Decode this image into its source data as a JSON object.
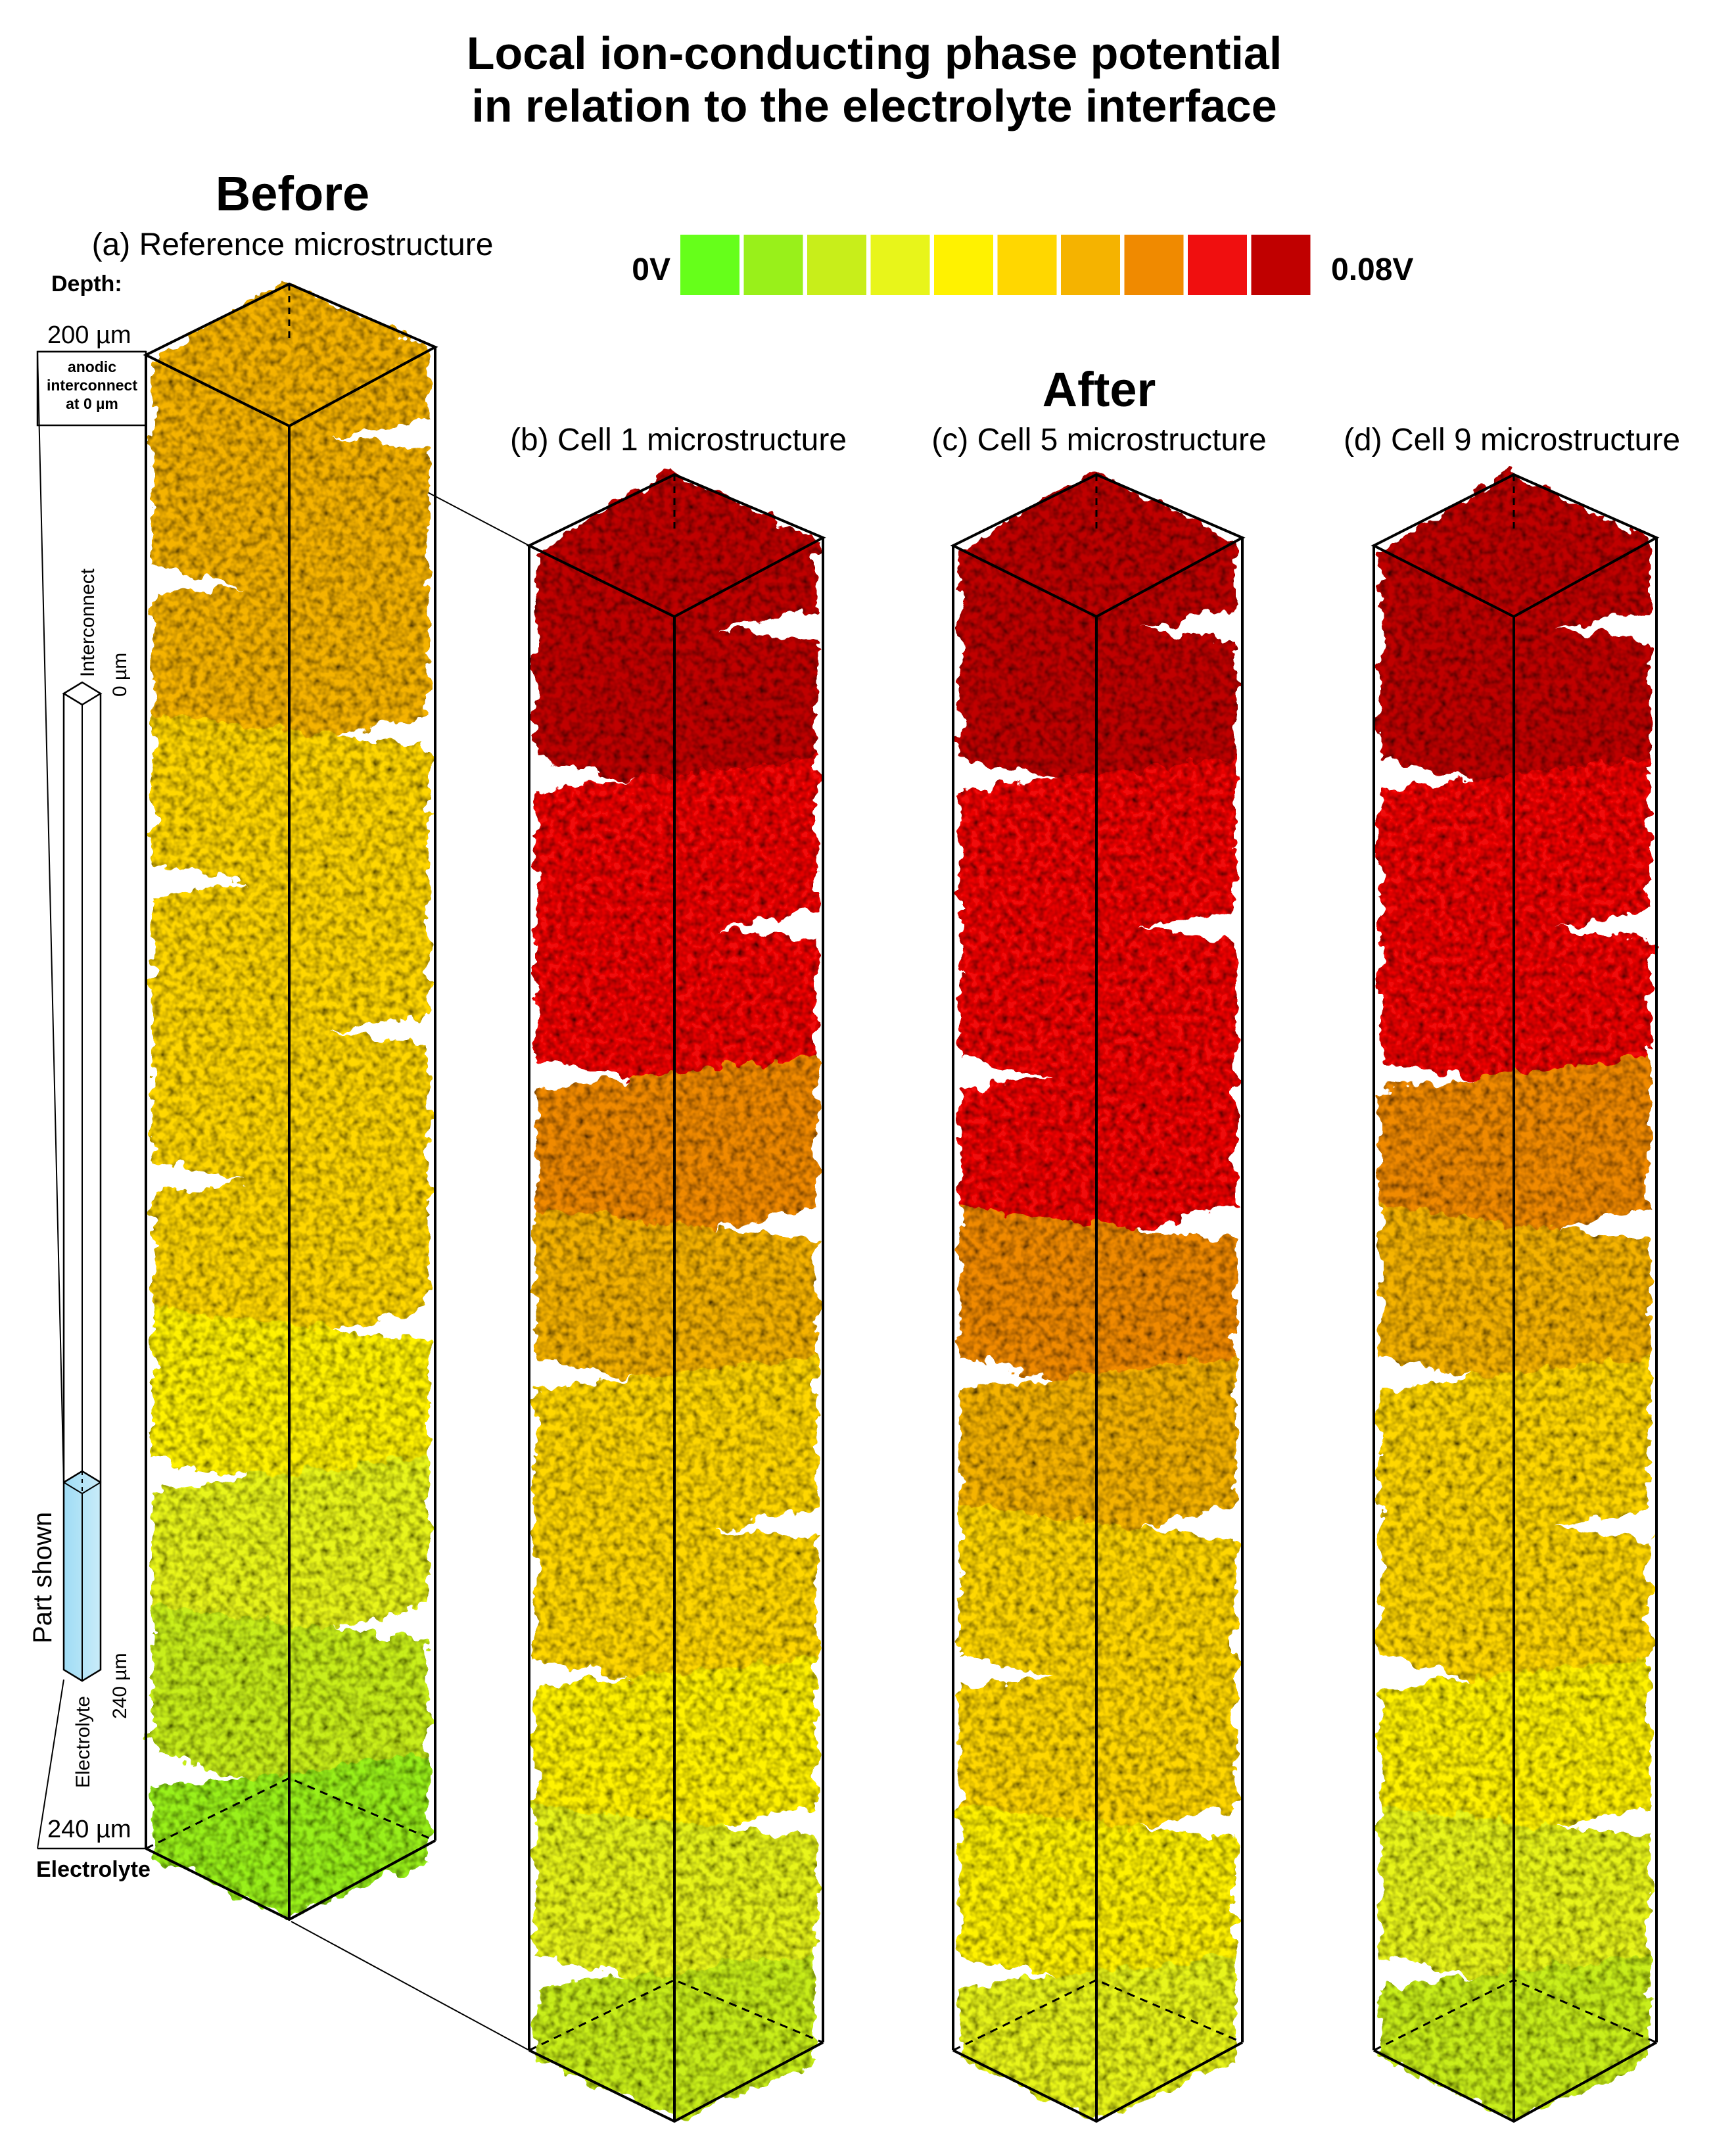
{
  "title": {
    "line1": "Local ion-conducting phase potential",
    "line2": "in relation to the electrolyte interface"
  },
  "before": {
    "heading": "Before",
    "panel_a_label": "(a) Reference microstructure"
  },
  "after": {
    "heading": "After",
    "panel_b_label": "(b) Cell 1 microstructure",
    "panel_c_label": "(c) Cell 5 microstructure",
    "panel_d_label": "(d) Cell 9 microstructure"
  },
  "colorbar": {
    "min_label": "0V",
    "max_label": "0.08V",
    "min_value": 0,
    "max_value": 0.08,
    "unit": "V",
    "colors": [
      "#66ff1a",
      "#99f01a",
      "#c8ee1a",
      "#e8f51a",
      "#fff200",
      "#ffd700",
      "#f5b300",
      "#f08a00",
      "#f00f0f",
      "#c00000"
    ]
  },
  "depth": {
    "label": "Depth:",
    "top": "200 µm",
    "bottom": "240 µm",
    "anodic_line1": "anodic",
    "anodic_line2": "interconnect",
    "anodic_line3": "at 0 µm",
    "electrolyte": "Electrolyte"
  },
  "inset": {
    "interconnect": "Interconnect",
    "zero": "0 µm",
    "part_shown": "Part shown",
    "depth_240": "240 µm",
    "electrolyte": "Electrolyte"
  },
  "potential_profiles": {
    "unit": "V",
    "note": "band potentials listed from top (interconnect side) to bottom (electrolyte side)",
    "reference": [
      0.056,
      0.056,
      0.056,
      0.048,
      0.048,
      0.04,
      0.04,
      0.032,
      0.024,
      0.016,
      0.008
    ],
    "cell1": [
      0.08,
      0.08,
      0.072,
      0.072,
      0.064,
      0.056,
      0.048,
      0.04,
      0.032,
      0.024,
      0.016
    ],
    "cell5": [
      0.08,
      0.08,
      0.072,
      0.072,
      0.072,
      0.064,
      0.056,
      0.048,
      0.04,
      0.032,
      0.024
    ],
    "cell9": [
      0.08,
      0.08,
      0.072,
      0.072,
      0.064,
      0.056,
      0.048,
      0.04,
      0.032,
      0.024,
      0.016
    ]
  }
}
